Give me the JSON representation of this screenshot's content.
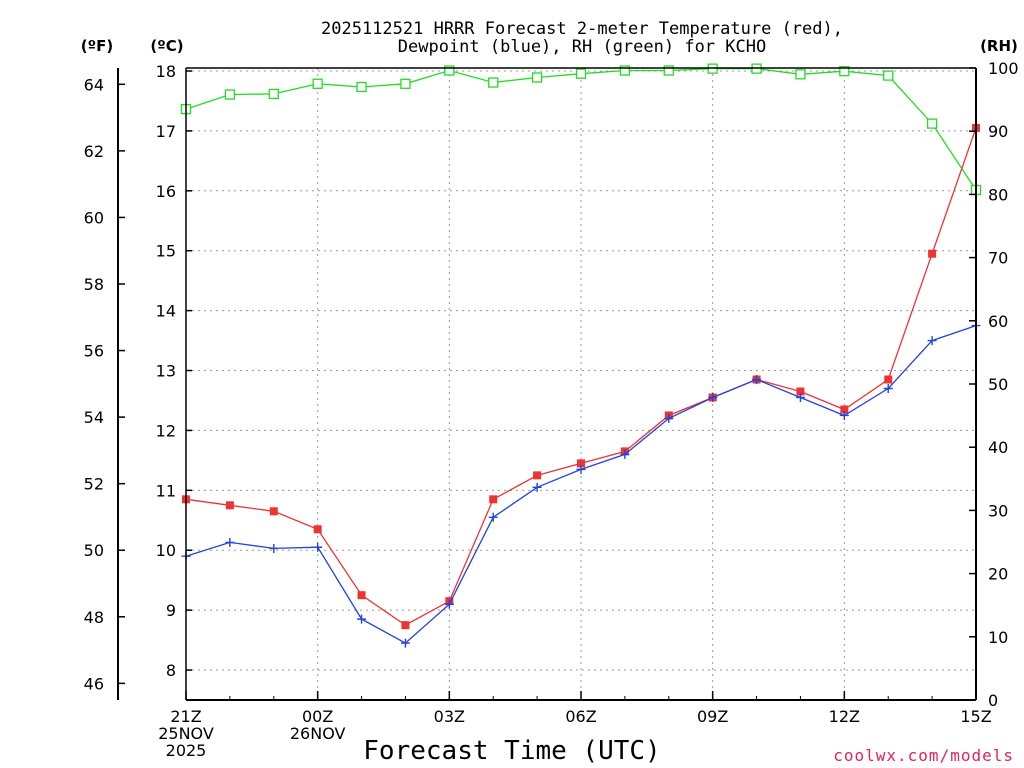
{
  "chart_data": {
    "type": "line",
    "title_line1": "2025112521 HRRR Forecast 2-meter Temperature (red),",
    "title_line2": "Dewpoint (blue), RH (green) for KCHO",
    "xlabel": "Forecast Time (UTC)",
    "credit": "coolwx.com/models",
    "units": {
      "fahrenheit": "(ºF)",
      "celsius": "(ºC)",
      "rh": "(RH)"
    },
    "x_hours": [
      0,
      1,
      2,
      3,
      4,
      5,
      6,
      7,
      8,
      9,
      10,
      11,
      12,
      13,
      14,
      15,
      16,
      17,
      18
    ],
    "x_ticks": [
      {
        "hour": 0,
        "lines": [
          "21Z",
          "25NOV",
          "2025"
        ]
      },
      {
        "hour": 3,
        "lines": [
          "00Z",
          "26NOV"
        ]
      },
      {
        "hour": 6,
        "lines": [
          "03Z"
        ]
      },
      {
        "hour": 9,
        "lines": [
          "06Z"
        ]
      },
      {
        "hour": 12,
        "lines": [
          "09Z"
        ]
      },
      {
        "hour": 15,
        "lines": [
          "12Z"
        ]
      },
      {
        "hour": 18,
        "lines": [
          "15Z"
        ]
      }
    ],
    "y_celsius": {
      "range": [
        7.5,
        18.05
      ],
      "ticks": [
        8,
        9,
        10,
        11,
        12,
        13,
        14,
        15,
        16,
        17,
        18
      ]
    },
    "y_fahrenheit": {
      "range": [
        45.5,
        64.49
      ],
      "ticks": [
        46,
        48,
        50,
        52,
        54,
        56,
        58,
        60,
        62,
        64
      ]
    },
    "y_rh": {
      "range": [
        0,
        100
      ],
      "ticks": [
        0,
        10,
        20,
        30,
        40,
        50,
        60,
        70,
        80,
        90,
        100
      ]
    },
    "series": [
      {
        "name": "RH",
        "axis": "rh",
        "color": "#22dd22",
        "marker": "open-square",
        "values": [
          93.5,
          95.8,
          95.9,
          97.5,
          97.0,
          97.5,
          99.6,
          97.7,
          98.5,
          99.1,
          99.6,
          99.6,
          99.9,
          99.9,
          99.0,
          99.5,
          98.8,
          91.2,
          80.7
        ]
      },
      {
        "name": "Temperature",
        "axis": "celsius",
        "color": "#ee3333",
        "marker": "filled-square",
        "values": [
          10.85,
          10.75,
          10.65,
          10.35,
          9.25,
          8.75,
          9.15,
          10.85,
          11.25,
          11.45,
          11.65,
          12.25,
          12.55,
          12.85,
          12.65,
          12.35,
          12.85,
          14.95,
          17.05
        ]
      },
      {
        "name": "Dewpoint",
        "axis": "celsius",
        "color": "#2244dd",
        "marker": "plus",
        "values": [
          9.9,
          10.13,
          10.03,
          10.05,
          8.85,
          8.45,
          9.1,
          10.55,
          11.05,
          11.35,
          11.6,
          12.2,
          12.55,
          12.85,
          12.55,
          12.25,
          12.7,
          13.5,
          13.75
        ]
      }
    ]
  }
}
